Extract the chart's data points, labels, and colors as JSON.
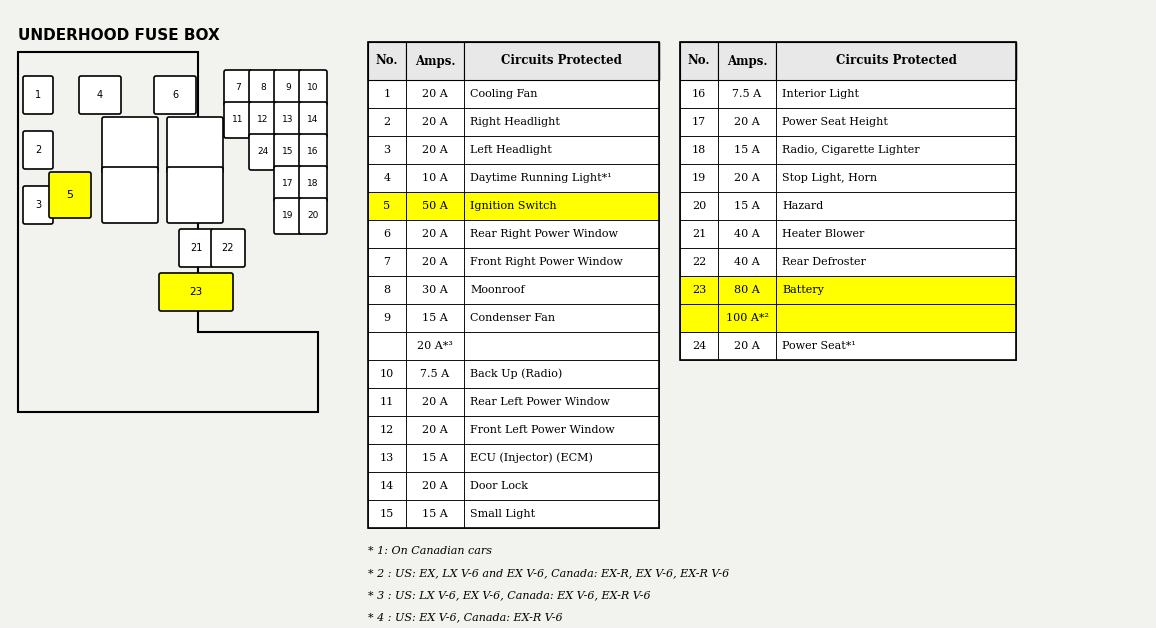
{
  "title": "UNDERHOOD FUSE BOX",
  "bg_color": "#f2f2ee",
  "table1_headers": [
    "No.",
    "Amps.",
    "Circuits Protected"
  ],
  "table1_rows": [
    [
      "1",
      "20 A",
      "Cooling Fan",
      false
    ],
    [
      "2",
      "20 A",
      "Right Headlight",
      false
    ],
    [
      "3",
      "20 A",
      "Left Headlight",
      false
    ],
    [
      "4",
      "10 A",
      "Daytime Running Light*¹",
      false
    ],
    [
      "5",
      "50 A",
      "Ignition Switch",
      true
    ],
    [
      "6",
      "20 A",
      "Rear Right Power Window",
      false
    ],
    [
      "7",
      "20 A",
      "Front Right Power Window",
      false
    ],
    [
      "8",
      "30 A",
      "Moonroof",
      false
    ],
    [
      "9",
      "15 A",
      "Condenser Fan",
      false
    ],
    [
      "",
      "20 A*³",
      "",
      false
    ],
    [
      "10",
      "7.5 A",
      "Back Up (Radio)",
      false
    ],
    [
      "11",
      "20 A",
      "Rear Left Power Window",
      false
    ],
    [
      "12",
      "20 A",
      "Front Left Power Window",
      false
    ],
    [
      "13",
      "15 A",
      "ECU (Injector) (ECM)",
      false
    ],
    [
      "14",
      "20 A",
      "Door Lock",
      false
    ],
    [
      "15",
      "15 A",
      "Small Light",
      false
    ]
  ],
  "table2_headers": [
    "No.",
    "Amps.",
    "Circuits Protected"
  ],
  "table2_rows": [
    [
      "16",
      "7.5 A",
      "Interior Light",
      false
    ],
    [
      "17",
      "20 A",
      "Power Seat Height",
      false
    ],
    [
      "18",
      "15 A",
      "Radio, Cigarette Lighter",
      false
    ],
    [
      "19",
      "20 A",
      "Stop Light, Horn",
      false
    ],
    [
      "20",
      "15 A",
      "Hazard",
      false
    ],
    [
      "21",
      "40 A",
      "Heater Blower",
      false
    ],
    [
      "22",
      "40 A",
      "Rear Defroster",
      false
    ],
    [
      "23",
      "80 A",
      "Battery",
      true
    ],
    [
      "",
      "100 A*²",
      "",
      true
    ],
    [
      "24",
      "20 A",
      "Power Seat*¹",
      false
    ]
  ],
  "footnotes": [
    "* 1: On Canadian cars",
    "* 2 : US: EX, LX V-6 and EX V-6, Canada: EX-R, EX V-6, EX-R V-6",
    "* 3 : US: LX V-6, EX V-6, Canada: EX V-6, EX-R V-6",
    "* 4 : US: EX V-6, Canada: EX-R V-6"
  ],
  "highlight_yellow": "#ffff00"
}
